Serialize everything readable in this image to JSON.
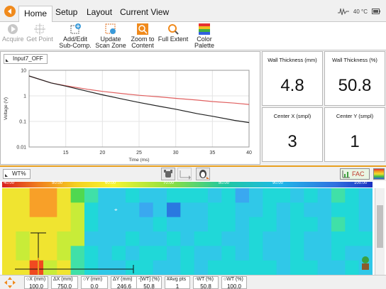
{
  "tabs": [
    {
      "label": "Home"
    },
    {
      "label": "Setup"
    },
    {
      "label": "Layout"
    },
    {
      "label": "Current View"
    }
  ],
  "status": {
    "temperature": "40 °C"
  },
  "ribbon": {
    "acquire": "Acquire",
    "get_point": "Get Point",
    "add_edit": [
      "Add/Edit",
      "Sub-Comp."
    ],
    "update_scan": [
      "Update",
      "Scan Zone"
    ],
    "zoom_content": [
      "Zoom to",
      "Content"
    ],
    "full_extent": "Full Extent",
    "color_palette": [
      "Color",
      "Palette"
    ]
  },
  "plot": {
    "input_label": "Input7_OFF",
    "chart_data": {
      "type": "line",
      "xlabel": "Time (ms)",
      "ylabel": "Voltage (V)",
      "xlim": [
        10,
        40
      ],
      "ylim": [
        0.01,
        10
      ],
      "yscale": "log",
      "xticks": [
        "15",
        "20",
        "25",
        "30",
        "35",
        "40"
      ],
      "yticks": [
        "10",
        "1",
        "0.1",
        "0.01"
      ],
      "series": [
        {
          "color": "#e06060",
          "x": [
            10,
            13,
            15,
            18,
            20,
            23,
            25,
            28,
            30,
            33,
            35,
            38,
            40
          ],
          "y": [
            6.0,
            3.2,
            2.5,
            1.8,
            1.5,
            1.2,
            1.05,
            0.9,
            0.8,
            0.68,
            0.6,
            0.52,
            0.46
          ]
        },
        {
          "color": "#222222",
          "x": [
            10,
            13,
            15,
            18,
            20,
            23,
            25,
            28,
            30,
            33,
            35,
            38,
            40
          ],
          "y": [
            6.0,
            3.2,
            2.4,
            1.5,
            1.1,
            0.72,
            0.55,
            0.38,
            0.3,
            0.2,
            0.16,
            0.11,
            0.09
          ]
        }
      ]
    }
  },
  "values": {
    "wt_mm_label": "Wall Thickness (mm)",
    "wt_mm": "4.8",
    "wt_pct_label": "Wall Thickness (%)",
    "wt_pct": "50.8",
    "cx_label": "Center X (smpl)",
    "cx": "3",
    "cy_label": "Center Y (smpl)",
    "cy": "1"
  },
  "cscan": {
    "wt_label": "WT%",
    "fac_label": "FAC",
    "scale_ticks": [
      "40.00",
      "50.00",
      "60.00",
      "70.00",
      "80.00",
      "90.00",
      "100.00"
    ]
  },
  "bottom": {
    "fields": [
      {
        "label": "○X (mm)",
        "value": "100.0"
      },
      {
        "label": "ΔX (mm)",
        "value": "750.0"
      },
      {
        "label": "○Y (mm)",
        "value": "0.0"
      },
      {
        "label": "ΔY (mm)",
        "value": "246.6"
      },
      {
        "label": "-[WT] (%)",
        "value": "50.8"
      },
      {
        "label": "#Avg pts",
        "value": "1"
      },
      {
        "label": "-WT (%)",
        "value": "50.8"
      },
      {
        "label": "○WT (%)",
        "value": "100.0"
      }
    ]
  },
  "colors": {
    "accent": "#f08a1c",
    "cursor": "#e8a020"
  }
}
